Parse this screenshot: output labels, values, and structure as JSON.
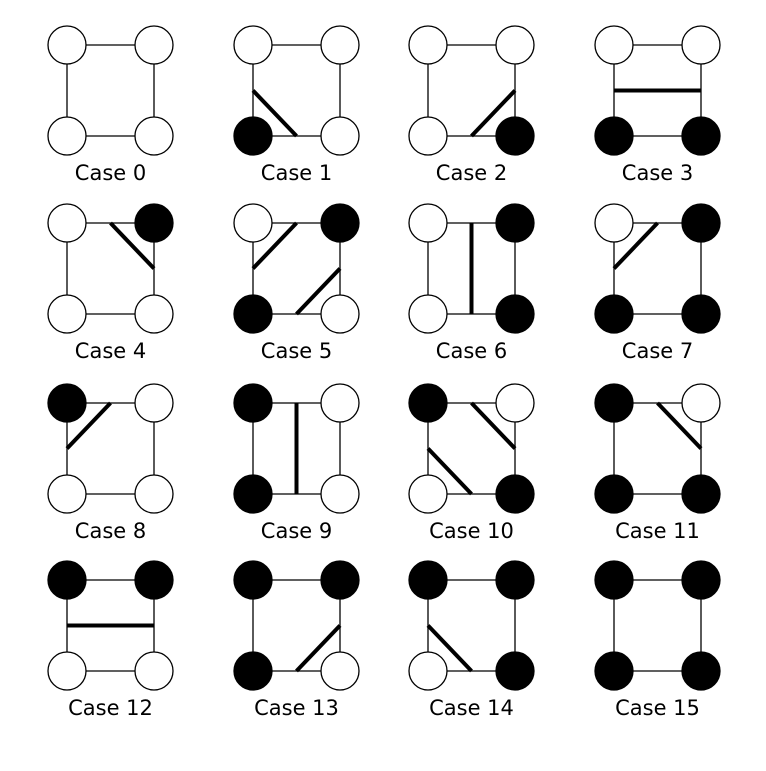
{
  "colors": {
    "filled": "#000000",
    "empty": "#ffffff",
    "edge": "#000000",
    "contour": "#000000"
  },
  "cases": [
    {
      "label": "Case 0",
      "corners": {
        "tl": 0,
        "tr": 0,
        "bl": 0,
        "br": 0
      },
      "segments": []
    },
    {
      "label": "Case 1",
      "corners": {
        "tl": 0,
        "tr": 0,
        "bl": 1,
        "br": 0
      },
      "segments": [
        [
          "left",
          "bottom"
        ]
      ]
    },
    {
      "label": "Case 2",
      "corners": {
        "tl": 0,
        "tr": 0,
        "bl": 0,
        "br": 1
      },
      "segments": [
        [
          "bottom",
          "right"
        ]
      ]
    },
    {
      "label": "Case 3",
      "corners": {
        "tl": 0,
        "tr": 0,
        "bl": 1,
        "br": 1
      },
      "segments": [
        [
          "left",
          "right"
        ]
      ]
    },
    {
      "label": "Case 4",
      "corners": {
        "tl": 0,
        "tr": 1,
        "bl": 0,
        "br": 0
      },
      "segments": [
        [
          "top",
          "right"
        ]
      ]
    },
    {
      "label": "Case 5",
      "corners": {
        "tl": 0,
        "tr": 1,
        "bl": 1,
        "br": 0
      },
      "segments": [
        [
          "left",
          "top"
        ],
        [
          "bottom",
          "right"
        ]
      ]
    },
    {
      "label": "Case 6",
      "corners": {
        "tl": 0,
        "tr": 1,
        "bl": 0,
        "br": 1
      },
      "segments": [
        [
          "top",
          "bottom"
        ]
      ]
    },
    {
      "label": "Case 7",
      "corners": {
        "tl": 0,
        "tr": 1,
        "bl": 1,
        "br": 1
      },
      "segments": [
        [
          "left",
          "top"
        ]
      ]
    },
    {
      "label": "Case 8",
      "corners": {
        "tl": 1,
        "tr": 0,
        "bl": 0,
        "br": 0
      },
      "segments": [
        [
          "left",
          "top"
        ]
      ]
    },
    {
      "label": "Case 9",
      "corners": {
        "tl": 1,
        "tr": 0,
        "bl": 1,
        "br": 0
      },
      "segments": [
        [
          "top",
          "bottom"
        ]
      ]
    },
    {
      "label": "Case 10",
      "corners": {
        "tl": 1,
        "tr": 0,
        "bl": 0,
        "br": 1
      },
      "segments": [
        [
          "top",
          "right"
        ],
        [
          "left",
          "bottom"
        ]
      ]
    },
    {
      "label": "Case 11",
      "corners": {
        "tl": 1,
        "tr": 0,
        "bl": 1,
        "br": 1
      },
      "segments": [
        [
          "top",
          "right"
        ]
      ]
    },
    {
      "label": "Case 12",
      "corners": {
        "tl": 1,
        "tr": 1,
        "bl": 0,
        "br": 0
      },
      "segments": [
        [
          "left",
          "right"
        ]
      ]
    },
    {
      "label": "Case 13",
      "corners": {
        "tl": 1,
        "tr": 1,
        "bl": 1,
        "br": 0
      },
      "segments": [
        [
          "bottom",
          "right"
        ]
      ]
    },
    {
      "label": "Case 14",
      "corners": {
        "tl": 1,
        "tr": 1,
        "bl": 0,
        "br": 1
      },
      "segments": [
        [
          "left",
          "bottom"
        ]
      ]
    },
    {
      "label": "Case 15",
      "corners": {
        "tl": 1,
        "tr": 1,
        "bl": 1,
        "br": 1
      },
      "segments": []
    }
  ]
}
